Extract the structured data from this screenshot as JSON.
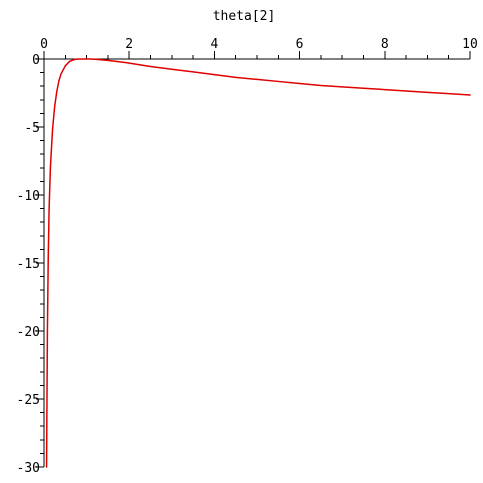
{
  "chart_data": {
    "type": "line",
    "title": "",
    "xlabel": "theta[2]",
    "ylabel": "",
    "xlim": [
      0,
      10
    ],
    "ylim": [
      -30,
      0
    ],
    "x_major_ticks": [
      0,
      2,
      4,
      6,
      8,
      10
    ],
    "x_tick_labels": [
      "0",
      "2",
      "4",
      "6",
      "8",
      "10"
    ],
    "x_minor_step": 0.5,
    "y_major_ticks": [
      0,
      -5,
      -10,
      -15,
      -20,
      -25,
      -30
    ],
    "y_tick_labels": [
      "0",
      "-5",
      "-10",
      "-15",
      "-20",
      "-25",
      "-30"
    ],
    "y_minor_step": 1,
    "x_axis_position": "top",
    "grid": false,
    "legend": "none",
    "colors": {
      "curve": "#e00000",
      "axes": "#000000"
    },
    "series": [
      {
        "x": [
          0.06,
          0.08,
          0.1,
          0.12,
          0.15,
          0.2,
          0.25,
          0.3,
          0.35,
          0.4,
          0.5,
          0.6,
          0.7,
          0.8,
          0.9,
          1.0,
          1.1,
          1.2,
          1.5,
          2.0,
          2.5,
          3.0,
          3.5,
          4.0,
          4.5,
          5.0,
          5.5,
          6.0,
          6.5,
          7.0,
          7.5,
          8.0,
          8.5,
          9.0,
          9.5,
          10.0
        ],
        "y": [
          -30,
          -20,
          -14.5,
          -11,
          -8,
          -5.2,
          -3.5,
          -2.4,
          -1.6,
          -1.1,
          -0.5,
          -0.18,
          -0.05,
          0,
          0,
          0,
          0,
          -0.02,
          -0.1,
          -0.3,
          -0.55,
          -0.75,
          -0.95,
          -1.15,
          -1.35,
          -1.5,
          -1.65,
          -1.8,
          -1.95,
          -2.05,
          -2.15,
          -2.25,
          -2.35,
          -2.45,
          -2.55,
          -2.65
        ]
      }
    ]
  }
}
